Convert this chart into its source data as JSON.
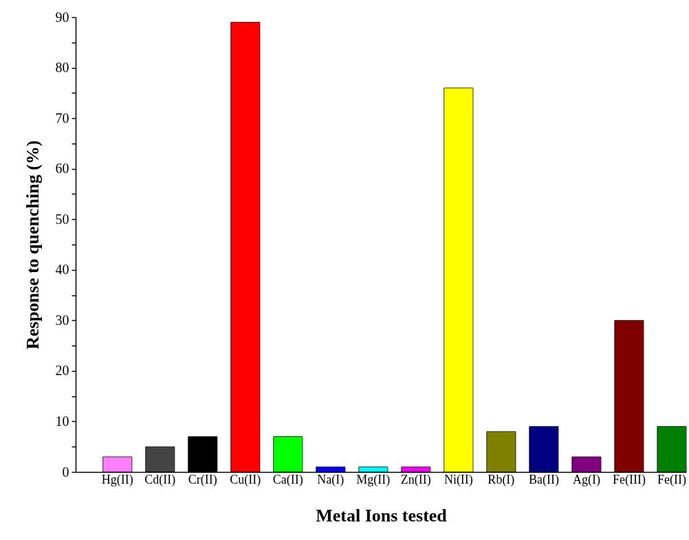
{
  "chart_data": {
    "type": "bar",
    "xlabel": "Metal Ions tested",
    "ylabel": "Response to quenching (%)",
    "categories": [
      "Hg(II)",
      "Cd(II)",
      "Cr(II)",
      "Cu(II)",
      "Ca(II)",
      "Na(I)",
      "Mg(II)",
      "Zn(II)",
      "Ni(II)",
      "Rb(I)",
      "Ba(II)",
      "Ag(I)",
      "Fe(III)",
      "Fe(II)"
    ],
    "values": [
      3,
      5,
      7,
      89,
      7,
      1,
      1,
      1,
      76,
      8,
      9,
      3,
      30,
      9
    ],
    "colors": [
      "#ff80ff",
      "#444444",
      "#000000",
      "#ff0000",
      "#00ff00",
      "#0000ff",
      "#00ffff",
      "#ff00ff",
      "#ffff00",
      "#808000",
      "#000080",
      "#800080",
      "#800000",
      "#008000"
    ],
    "ylim": [
      0,
      90
    ],
    "yticks": [
      0,
      {
        "value": 5,
        "label": null
      },
      10,
      {
        "value": 15,
        "label": null
      },
      20,
      {
        "value": 25,
        "label": null
      },
      30,
      {
        "value": 35,
        "label": null
      },
      40,
      {
        "value": 45,
        "label": null
      },
      50,
      {
        "value": 55,
        "label": null
      },
      60,
      {
        "value": 65,
        "label": null
      },
      70,
      {
        "value": 75,
        "label": null
      },
      80,
      {
        "value": 85,
        "label": null
      },
      90
    ],
    "grid": false
  }
}
